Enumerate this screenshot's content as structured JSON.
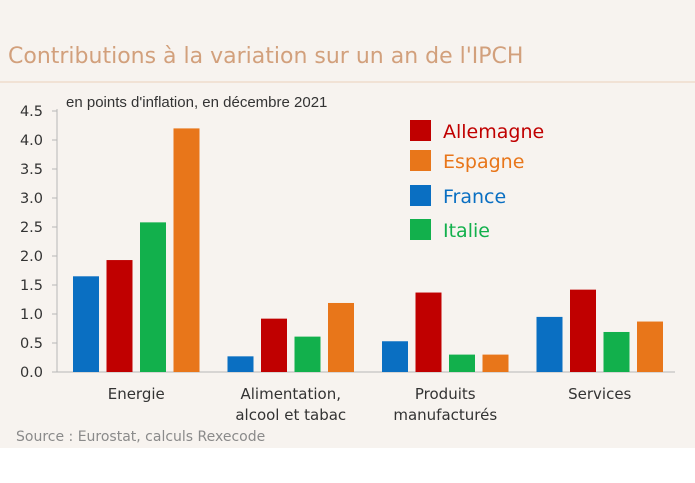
{
  "header": {
    "title": "Contributions à la variation sur un an de l'IPCH",
    "subtitle": "en points d'inflation, en décembre 2021"
  },
  "footer": {
    "source": "Source : Eurostat, calculs Rexecode"
  },
  "colors": {
    "title": "#d2a07c",
    "panel_background": "#f7f3ef",
    "France": "#0a6fc2",
    "Allemagne": "#c00000",
    "Italie": "#12b04c",
    "Espagne": "#e8761a"
  },
  "chart_data": {
    "type": "bar",
    "title": "Contributions à la variation sur un an de l'IPCH",
    "subtitle": "en points d'inflation, en décembre 2021",
    "xlabel": "",
    "ylabel": "",
    "ylim": [
      0,
      4.5
    ],
    "yticks": [
      0,
      0.5,
      1,
      1.5,
      2,
      2.5,
      3,
      3.5,
      4,
      4.5
    ],
    "ytick_labels": [
      "0.0",
      "0.5",
      "1.0",
      "1.5",
      "2.0",
      "2.5",
      "3.0",
      "3.5",
      "4.0",
      "4.5"
    ],
    "categories": [
      [
        "Energie"
      ],
      [
        "Alimentation,",
        "alcool et tabac"
      ],
      [
        "Produits",
        "manufacturés"
      ],
      [
        "Services"
      ]
    ],
    "series_order_in_group": [
      "France",
      "Allemagne",
      "Italie",
      "Espagne"
    ],
    "legend_order": [
      "Allemagne",
      "Espagne",
      "France",
      "Italie"
    ],
    "legend_position": "top-right",
    "grid": false,
    "series": [
      {
        "name": "France",
        "values": [
          1.65,
          0.27,
          0.53,
          0.95
        ]
      },
      {
        "name": "Allemagne",
        "values": [
          1.93,
          0.92,
          1.37,
          1.42
        ]
      },
      {
        "name": "Italie",
        "values": [
          2.58,
          0.61,
          0.3,
          0.69
        ]
      },
      {
        "name": "Espagne",
        "values": [
          4.2,
          1.19,
          0.3,
          0.87
        ]
      }
    ]
  }
}
